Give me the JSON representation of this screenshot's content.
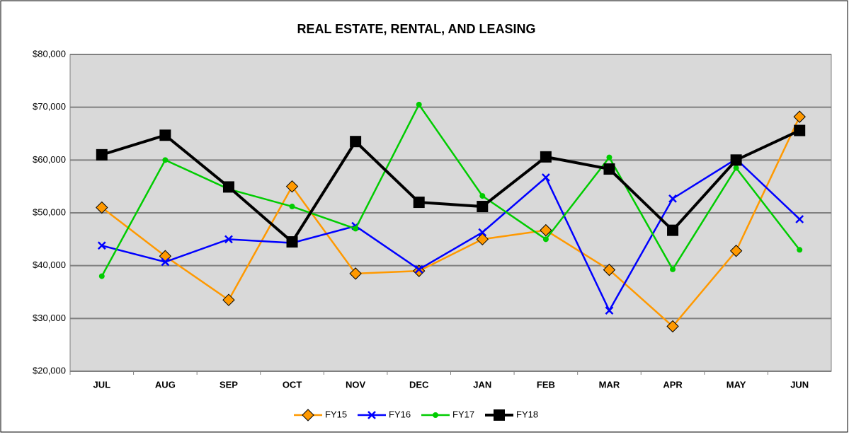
{
  "chart_data": {
    "type": "line",
    "title": "REAL ESTATE, RENTAL, AND LEASING",
    "categories": [
      "JUL",
      "AUG",
      "SEP",
      "OCT",
      "NOV",
      "DEC",
      "JAN",
      "FEB",
      "MAR",
      "APR",
      "MAY",
      "JUN"
    ],
    "series": [
      {
        "name": "FY15",
        "color": "#ff9900",
        "marker": "diamond",
        "values": [
          51000,
          41800,
          33500,
          55000,
          38500,
          39000,
          45000,
          46700,
          39200,
          28500,
          42800,
          68200
        ]
      },
      {
        "name": "FY16",
        "color": "#0000ff",
        "marker": "x",
        "values": [
          43800,
          40700,
          45000,
          44300,
          47500,
          39300,
          46300,
          56700,
          31500,
          52700,
          60200,
          48800
        ]
      },
      {
        "name": "FY17",
        "color": "#00cc00",
        "marker": "circle",
        "values": [
          38000,
          60000,
          54500,
          51200,
          47000,
          70500,
          53200,
          45000,
          60500,
          39300,
          58500,
          43000
        ]
      },
      {
        "name": "FY18",
        "color": "#000000",
        "marker": "square",
        "values": [
          61000,
          64700,
          54900,
          44500,
          63500,
          52000,
          51200,
          60600,
          58300,
          46700,
          60000,
          65600
        ]
      }
    ],
    "ylim": [
      20000,
      80000
    ],
    "yticks": [
      {
        "value": 20000,
        "label": "$20,000"
      },
      {
        "value": 30000,
        "label": "$30,000"
      },
      {
        "value": 40000,
        "label": "$40,000"
      },
      {
        "value": 50000,
        "label": "$50,000"
      },
      {
        "value": 60000,
        "label": "$60,000"
      },
      {
        "value": 70000,
        "label": "$70,000"
      },
      {
        "value": 80000,
        "label": "$80,000"
      }
    ],
    "grid": true,
    "legend": "bottom"
  }
}
